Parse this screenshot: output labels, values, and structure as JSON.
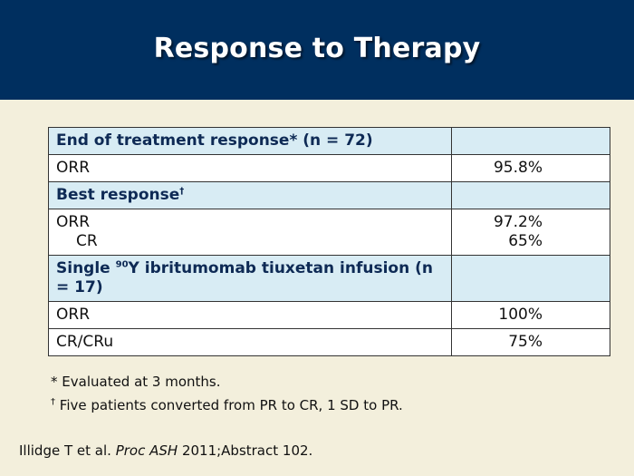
{
  "title": "Response to Therapy",
  "table": {
    "sections": [
      {
        "header": "End of treatment response* (n = 72)",
        "rows": [
          {
            "label": "ORR",
            "value": "95.8%"
          }
        ]
      },
      {
        "header": "Best response",
        "header_sup": "†",
        "rows": [
          {
            "label": "ORR",
            "value": "97.2%",
            "sub_label": "CR",
            "sub_value": "65%"
          }
        ]
      },
      {
        "header_pre": "Single ",
        "header_sup": "90",
        "header_post": "Y ibritumomab tiuxetan infusion (n = 17)",
        "rows": [
          {
            "label": "ORR",
            "value": "100%"
          },
          {
            "label": "CR/CRu",
            "value": "75%"
          }
        ]
      }
    ]
  },
  "notes": [
    {
      "mark": "*",
      "text": "Evaluated at 3 months."
    },
    {
      "mark": "†",
      "text": "Five patients converted from PR to CR, 1 SD to PR."
    }
  ],
  "citation": {
    "author": "Illidge T et al.",
    "journal": "Proc ASH",
    "ref": "2011;Abstract 102."
  },
  "colors": {
    "header_bg": "#002f5f",
    "page_bg": "#f3efdc",
    "table_header_bg": "#d8ecf4"
  }
}
